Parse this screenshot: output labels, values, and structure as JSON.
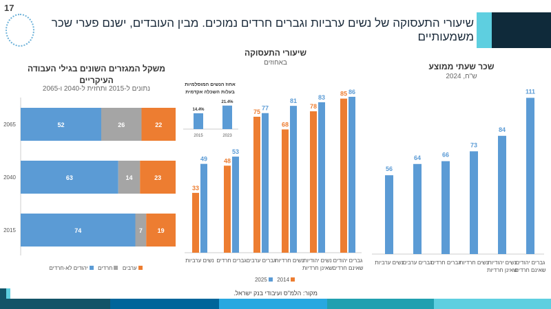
{
  "page_number": "17",
  "title": "שיעורי התעסוקה של נשים ערביות וגברים חרדים נמוכים. מבין העובדים, ישנם פערי שכר משמעותיים",
  "source": "מקור: הלמ\"ס ועיבודי בנק ישראל.",
  "colors": {
    "blue": "#5b9bd5",
    "orange": "#ed7d31",
    "gray": "#a5a5a5",
    "navy": "#0f2a3a",
    "cyan": "#5ecfe0"
  },
  "chart_data": [
    {
      "type": "bar",
      "stacked": true,
      "orientation": "horizontal",
      "title": "משקל המגזרים השונים בגילי העבודה העיקריים",
      "subtitle": "נתונים ל-2015 ותחזית ל-2040 ו-2065",
      "categories": [
        "2065",
        "2040",
        "2015"
      ],
      "series": [
        {
          "name": "יהודים לא-חרדים",
          "values": [
            52,
            63,
            74
          ]
        },
        {
          "name": "חרדים",
          "values": [
            26,
            14,
            7
          ]
        },
        {
          "name": "ערבים",
          "values": [
            22,
            23,
            19
          ]
        }
      ]
    },
    {
      "type": "bar",
      "title": "שיעורי התעסוקה",
      "subtitle": "באחוזים",
      "categories": [
        "נשים ערביות",
        "גברים חרדים",
        "גברים ערבים",
        "נשים חרדיות",
        "נשים יהודיות שאינן חרדיות",
        "גברים יהודים שאינם חרדים"
      ],
      "series": [
        {
          "name": "2014",
          "values": [
            33,
            48,
            75,
            68,
            78,
            85
          ]
        },
        {
          "name": "2025",
          "values": [
            49,
            53,
            77,
            81,
            83,
            86
          ]
        }
      ],
      "ylim": [
        0,
        90
      ]
    },
    {
      "type": "bar",
      "title": "אחוז הנשים המוסלמיות בעלות השכלה אקדמית",
      "categories": [
        "2015",
        "2023"
      ],
      "values": [
        14.4,
        21.4
      ],
      "labels": [
        "14.4%",
        "21.4%"
      ]
    },
    {
      "type": "bar",
      "title": "שכר שעתי ממוצע",
      "subtitle": "ש\"ח, 2024",
      "categories": [
        "נשים ערביות",
        "גברים ערבים",
        "גברים חרדים",
        "נשים חרדיות",
        "נשים יהודיות שאינן חרדיות",
        "גברים יהודים שאינם חרדים"
      ],
      "values": [
        56,
        64,
        66,
        73,
        84,
        111
      ],
      "ylim": [
        0,
        115
      ]
    }
  ]
}
